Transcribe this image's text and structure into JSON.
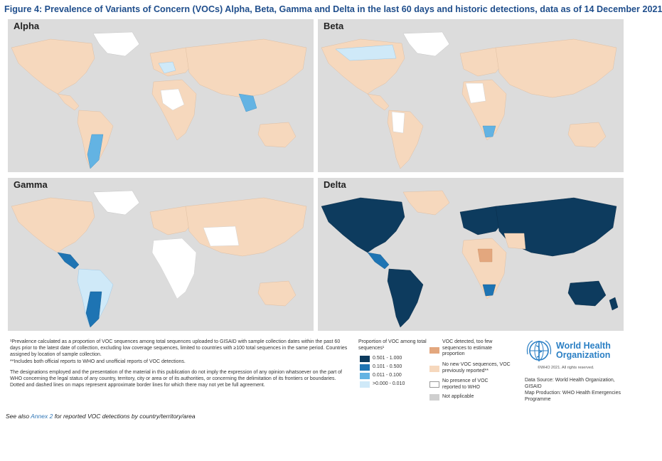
{
  "figure": {
    "title": "Figure 4: Prevalence of Variants of Concern (VOCs) Alpha, Beta, Gamma and Delta in the last 60 days and historic detections, data as of 14 December 2021"
  },
  "panels": [
    {
      "label": "Alpha"
    },
    {
      "label": "Beta"
    },
    {
      "label": "Gamma"
    },
    {
      "label": "Delta"
    }
  ],
  "notes": {
    "footnote1": "¹Prevalence calculated as a proportion of VOC sequences among total sequences uploaded to GISAID with sample collection dates within the past 60 days prior to the latest date of collection, excluding low coverage sequences, limited to countries with ≥100 total sequences in the same period. Countries assigned by location of sample collection.",
    "footnote2": "**Includes both official reports to WHO and unofficial reports of VOC detections.",
    "disclaimer": "The designations employed and the presentation of the material in this publication do not imply the expression of any opinion whatsoever on the part of WHO concerning the legal status of any country, territory, city or area or of its authorities, or concerning the delimitation of its frontiers or boundaries. Dotted and dashed lines on maps represent approximate border lines for which there may not yet be full agreement."
  },
  "see_also": {
    "prefix": "See also ",
    "link": "Annex 2",
    "suffix": " for reported VOC detections by country/territory/area"
  },
  "legend": {
    "title": "Proportion of VOC among total sequences¹",
    "scale": [
      {
        "label": "0.501 - 1.000",
        "color": "#0d3b5e"
      },
      {
        "label": "0.101 - 0.500",
        "color": "#1e74b3"
      },
      {
        "label": "0.011 - 0.100",
        "color": "#63b3e3"
      },
      {
        "label": ">0.000 - 0.010",
        "color": "#cfe9f8"
      }
    ],
    "categories": [
      {
        "label": "VOC detected, too few sequences to estimate proportion",
        "color": "#e3a77e"
      },
      {
        "label": "No new VOC sequences, VOC previously reported**",
        "color": "#f6d8bd"
      },
      {
        "label": "No presence of VOC reported to WHO",
        "color": "#ffffff"
      },
      {
        "label": "Not applicable",
        "color": "#cfcfcf"
      }
    ]
  },
  "who": {
    "name_line1": "World Health",
    "name_line2": "Organization",
    "copyright": "©WHO 2021. All rights reserved.",
    "data_source": "Data Source: World Health Organization, GISAID",
    "map_production": "Map Production: WHO Health Emergencies Programme"
  },
  "colors": {
    "title": "#1f4e8c",
    "ocean": "#dcdcdc",
    "who_blue": "#2a7fc4"
  }
}
